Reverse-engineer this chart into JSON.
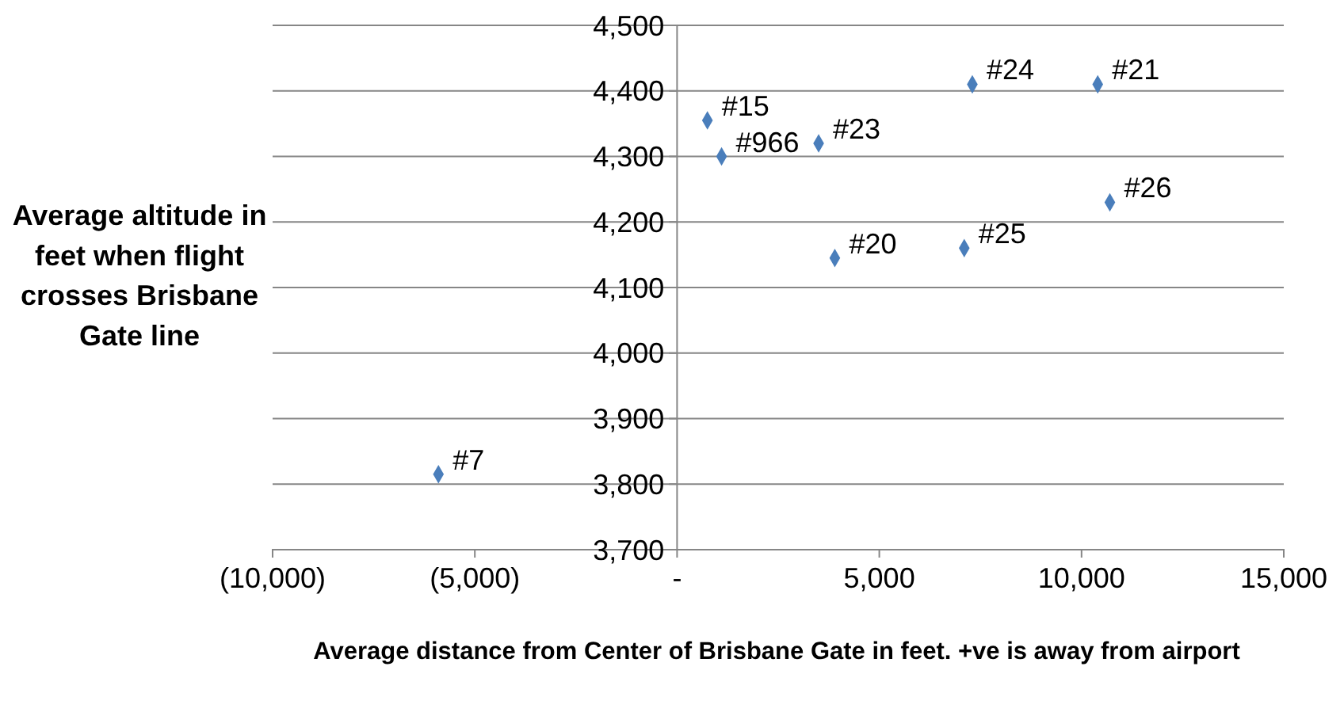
{
  "chart_data": {
    "type": "scatter",
    "xlabel": "Average distance from Center of Brisbane Gate in feet. +ve is away from airport",
    "ylabel": "Average altitude in feet when flight crosses Brisbane Gate line",
    "x": [
      -5900,
      750,
      1100,
      3500,
      3900,
      7300,
      10400,
      7100,
      10700
    ],
    "series": [
      {
        "color": "#4a7ebb",
        "values": [
          3815,
          4355,
          4300,
          4320,
          4145,
          4410,
          4410,
          4160,
          4230
        ]
      }
    ],
    "marker": "diamond",
    "grid": "y",
    "xlim": [
      -10000,
      15000
    ],
    "xticks": [
      {
        "value": -10000,
        "label": "(10,000)"
      },
      {
        "value": -5000,
        "label": "(5,000)"
      },
      {
        "value": 0,
        "label": "-"
      },
      {
        "value": 5000,
        "label": "5,000"
      },
      {
        "value": 10000,
        "label": "10,000"
      },
      {
        "value": 15000,
        "label": "15,000"
      }
    ],
    "ylim": [
      3700,
      4500
    ],
    "yticks": [
      {
        "value": 3700,
        "label": "3,700"
      },
      {
        "value": 3800,
        "label": "3,800"
      },
      {
        "value": 3900,
        "label": "3,900"
      },
      {
        "value": 4000,
        "label": "4,000"
      },
      {
        "value": 4100,
        "label": "4,100"
      },
      {
        "value": 4200,
        "label": "4,200"
      },
      {
        "value": 4300,
        "label": "4,300"
      },
      {
        "value": 4400,
        "label": "4,400"
      },
      {
        "value": 4500,
        "label": "4,500"
      }
    ],
    "annotations": [
      {
        "text": "#7",
        "x": -5900,
        "y": 3815
      },
      {
        "text": "#15",
        "x": 750,
        "y": 4355
      },
      {
        "text": "#966",
        "x": 1100,
        "y": 4300
      },
      {
        "text": "#23",
        "x": 3500,
        "y": 4320
      },
      {
        "text": "#20",
        "x": 3900,
        "y": 4145
      },
      {
        "text": "#24",
        "x": 7300,
        "y": 4410
      },
      {
        "text": "#21",
        "x": 10400,
        "y": 4410
      },
      {
        "text": "#25",
        "x": 7100,
        "y": 4160
      },
      {
        "text": "#26",
        "x": 10700,
        "y": 4230
      }
    ]
  }
}
